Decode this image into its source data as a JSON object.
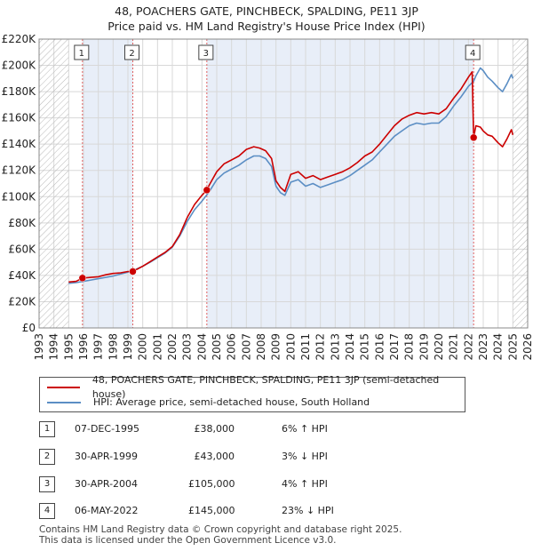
{
  "header": {
    "title_line1": "48, POACHERS GATE, PINCHBECK, SPALDING, PE11 3JP",
    "title_line2": "Price paid vs. HM Land Registry's House Price Index (HPI)"
  },
  "colors": {
    "property": "#cc0000",
    "hpi": "#5b8ec4",
    "shade": "#e8eef8",
    "grid": "#d8d8d8"
  },
  "chart_data": {
    "type": "line",
    "xlim": [
      1993,
      2026
    ],
    "ylim": [
      0,
      220000
    ],
    "x_ticks": [
      "1993",
      "1994",
      "1995",
      "1996",
      "1997",
      "1998",
      "1999",
      "2000",
      "2001",
      "2002",
      "2003",
      "2004",
      "2005",
      "2006",
      "2007",
      "2008",
      "2009",
      "2010",
      "2011",
      "2012",
      "2013",
      "2014",
      "2015",
      "2016",
      "2017",
      "2018",
      "2019",
      "2020",
      "2021",
      "2022",
      "2023",
      "2024",
      "2025",
      "2026"
    ],
    "y_ticks": [
      {
        "value": 0,
        "label": "£0"
      },
      {
        "value": 20000,
        "label": "£20K"
      },
      {
        "value": 40000,
        "label": "£40K"
      },
      {
        "value": 60000,
        "label": "£60K"
      },
      {
        "value": 80000,
        "label": "£80K"
      },
      {
        "value": 100000,
        "label": "£100K"
      },
      {
        "value": 120000,
        "label": "£120K"
      },
      {
        "value": 140000,
        "label": "£140K"
      },
      {
        "value": 160000,
        "label": "£160K"
      },
      {
        "value": 180000,
        "label": "£180K"
      },
      {
        "value": 200000,
        "label": "£200K"
      },
      {
        "value": 220000,
        "label": "£220K"
      }
    ],
    "hatch_ranges": [
      [
        1993,
        1995
      ],
      [
        2025.0,
        2026
      ]
    ],
    "shaded_ranges": [
      [
        1995.93,
        1999.33
      ],
      [
        2004.33,
        2022.35
      ]
    ],
    "series": [
      {
        "name": "48, POACHERS GATE, PINCHBECK, SPALDING, PE11 3JP (semi-detached house)",
        "color": "#cc0000",
        "x": [
          1995.0,
          1995.5,
          1995.93,
          1996.5,
          1997.0,
          1997.5,
          1998.0,
          1998.5,
          1999.0,
          1999.33,
          2000.0,
          2000.5,
          2001.0,
          2001.5,
          2002.0,
          2002.5,
          2003.0,
          2003.5,
          2004.0,
          2004.33,
          2004.5,
          2005.0,
          2005.5,
          2006.0,
          2006.5,
          2007.0,
          2007.5,
          2007.9,
          2008.3,
          2008.7,
          2009.0,
          2009.3,
          2009.6,
          2010.0,
          2010.5,
          2011.0,
          2011.5,
          2012.0,
          2012.5,
          2013.0,
          2013.5,
          2014.0,
          2014.5,
          2015.0,
          2015.5,
          2016.0,
          2016.5,
          2017.0,
          2017.5,
          2018.0,
          2018.5,
          2019.0,
          2019.5,
          2020.0,
          2020.5,
          2021.0,
          2021.5,
          2022.0,
          2022.25,
          2022.35,
          2022.5,
          2022.8,
          2023.0,
          2023.3,
          2023.6,
          2024.0,
          2024.3,
          2024.6,
          2024.9,
          2025.0
        ],
        "y": [
          35000,
          35500,
          38000,
          38500,
          39000,
          40500,
          41500,
          42000,
          43000,
          43000,
          47000,
          50500,
          54000,
          57500,
          62000,
          71000,
          84000,
          94000,
          101000,
          105000,
          109000,
          119000,
          125000,
          128000,
          131000,
          136000,
          138000,
          137000,
          135000,
          129000,
          112000,
          107000,
          104000,
          117000,
          119000,
          114000,
          116000,
          113000,
          115000,
          117000,
          119000,
          122000,
          126000,
          131000,
          134000,
          140000,
          147000,
          154000,
          159000,
          162000,
          164000,
          163000,
          164000,
          163000,
          167000,
          175000,
          182000,
          191000,
          195000,
          145000,
          154000,
          153000,
          150000,
          147000,
          146000,
          141000,
          138000,
          144000,
          151000,
          147000
        ]
      },
      {
        "name": "HPI: Average price, semi-detached house, South Holland",
        "color": "#5b8ec4",
        "x": [
          1995.0,
          1995.5,
          1996.0,
          1996.5,
          1997.0,
          1997.5,
          1998.0,
          1998.5,
          1999.0,
          1999.5,
          2000.0,
          2000.5,
          2001.0,
          2001.5,
          2002.0,
          2002.5,
          2003.0,
          2003.5,
          2004.0,
          2004.5,
          2005.0,
          2005.5,
          2006.0,
          2006.5,
          2007.0,
          2007.5,
          2007.9,
          2008.3,
          2008.7,
          2009.0,
          2009.3,
          2009.6,
          2010.0,
          2010.5,
          2011.0,
          2011.5,
          2012.0,
          2012.5,
          2013.0,
          2013.5,
          2014.0,
          2014.5,
          2015.0,
          2015.5,
          2016.0,
          2016.5,
          2017.0,
          2017.5,
          2018.0,
          2018.5,
          2019.0,
          2019.5,
          2020.0,
          2020.5,
          2021.0,
          2021.5,
          2022.0,
          2022.35,
          2022.5,
          2022.8,
          2023.0,
          2023.3,
          2023.6,
          2024.0,
          2024.3,
          2024.6,
          2024.9,
          2025.0
        ],
        "y": [
          34000,
          34500,
          35500,
          36500,
          37500,
          38500,
          39500,
          41000,
          42500,
          44500,
          47000,
          50000,
          53500,
          57000,
          61500,
          70000,
          81000,
          90000,
          96500,
          104000,
          113000,
          118000,
          121000,
          124000,
          128000,
          131000,
          131000,
          129000,
          123000,
          108000,
          103000,
          101000,
          111000,
          113000,
          108000,
          110000,
          107000,
          109000,
          111000,
          113000,
          116000,
          120000,
          124000,
          128000,
          134000,
          140000,
          146000,
          150000,
          154000,
          156000,
          155000,
          156000,
          156000,
          161000,
          169000,
          176000,
          184000,
          188000,
          192000,
          198000,
          196000,
          191000,
          188000,
          183000,
          180000,
          186000,
          193000,
          190000
        ]
      }
    ],
    "sales": [
      {
        "label": "1",
        "x": 1995.93,
        "y": 38000
      },
      {
        "label": "2",
        "x": 1999.33,
        "y": 43000
      },
      {
        "label": "3",
        "x": 2004.33,
        "y": 105000
      },
      {
        "label": "4",
        "x": 2022.35,
        "y": 145000
      }
    ]
  },
  "legend": {
    "property_label": "48, POACHERS GATE, PINCHBECK, SPALDING, PE11 3JP (semi-detached house)",
    "hpi_label": "HPI: Average price, semi-detached house, South Holland"
  },
  "transactions": [
    {
      "num": "1",
      "date": "07-DEC-1995",
      "price": "£38,000",
      "delta": "6% ↑ HPI"
    },
    {
      "num": "2",
      "date": "30-APR-1999",
      "price": "£43,000",
      "delta": "3% ↓ HPI"
    },
    {
      "num": "3",
      "date": "30-APR-2004",
      "price": "£105,000",
      "delta": "4% ↑ HPI"
    },
    {
      "num": "4",
      "date": "06-MAY-2022",
      "price": "£145,000",
      "delta": "23% ↓ HPI"
    }
  ],
  "footer": {
    "line1": "Contains HM Land Registry data © Crown copyright and database right 2025.",
    "line2": "This data is licensed under the Open Government Licence v3.0."
  }
}
